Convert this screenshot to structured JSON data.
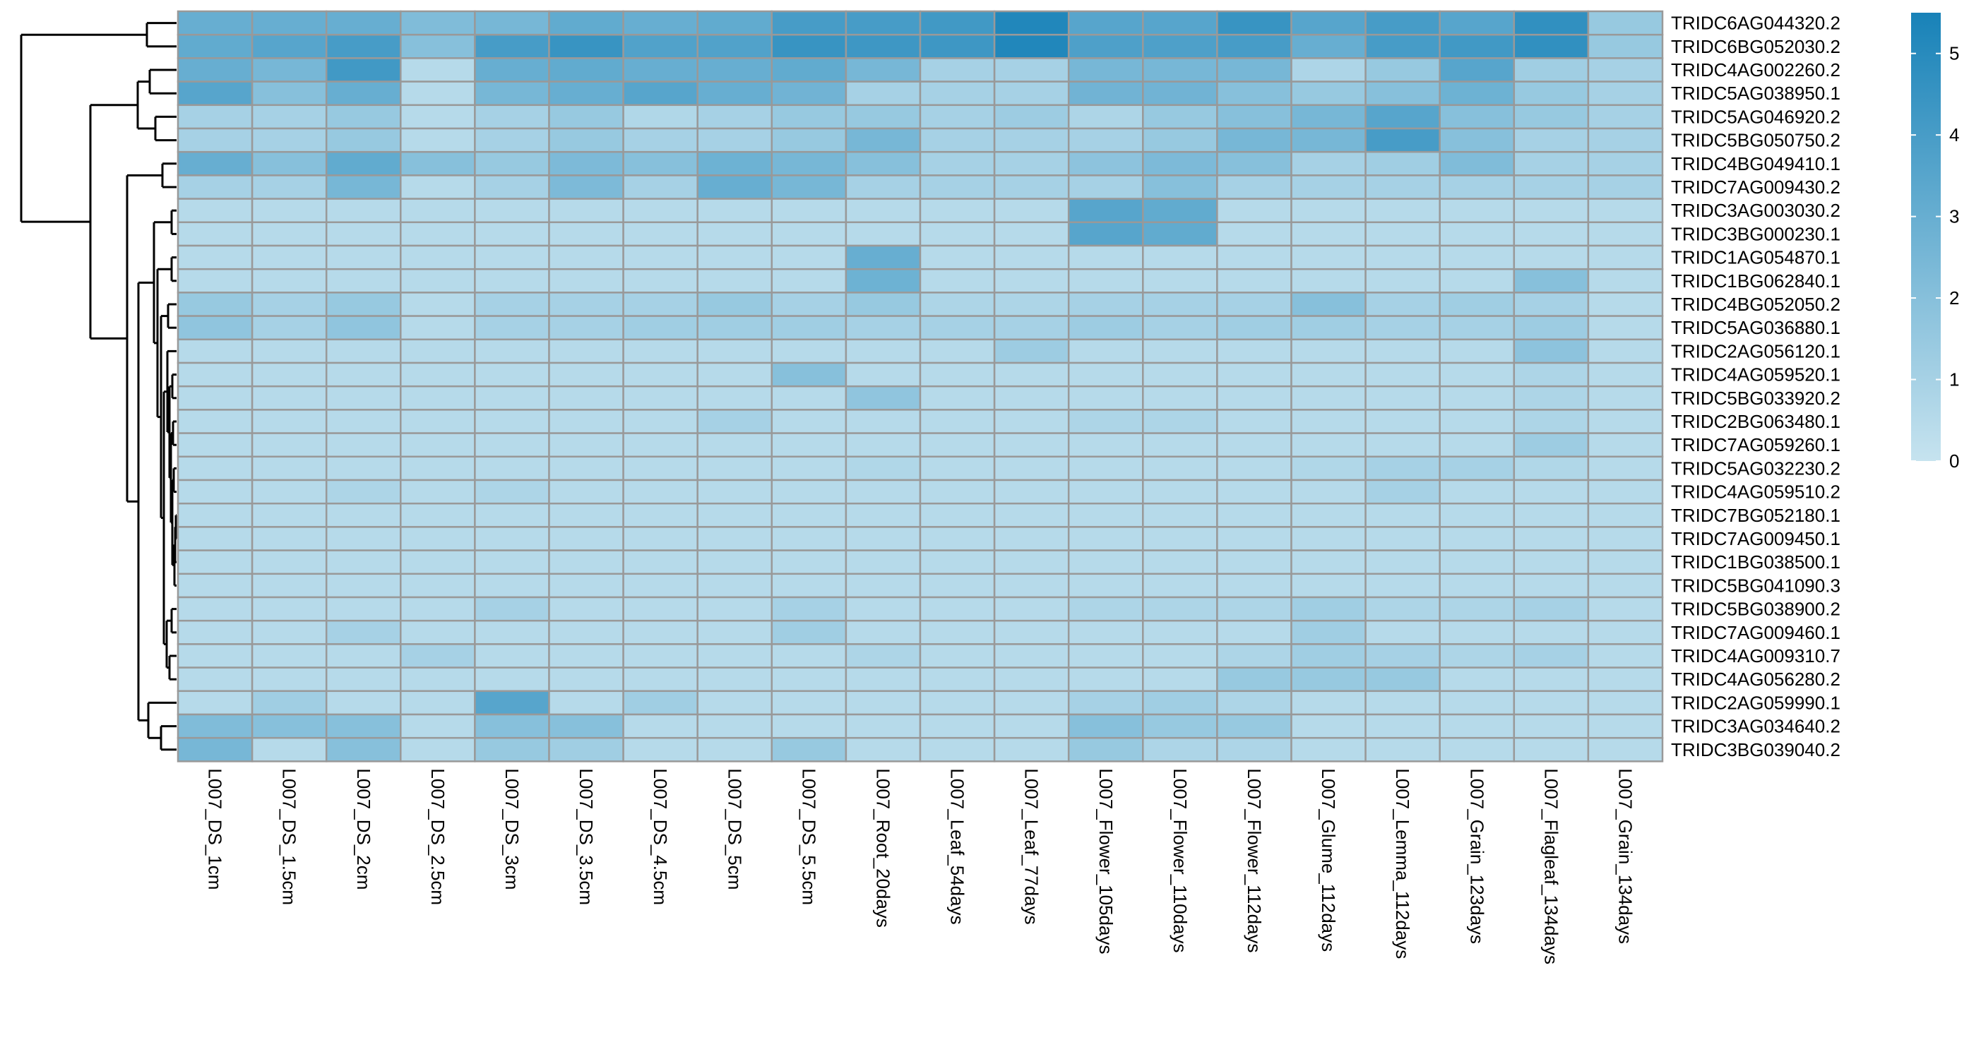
{
  "chart_data": {
    "type": "heatmap",
    "title": "",
    "xlabel": "",
    "ylabel": "",
    "columns": [
      "L007_DS_1cm",
      "L007_DS_1.5cm",
      "L007_DS_2cm",
      "L007_DS_2.5cm",
      "L007_DS_3cm",
      "L007_DS_3.5cm",
      "L007_DS_4.5cm",
      "L007_DS_5cm",
      "L007_DS_5.5cm",
      "L007_Root_20days",
      "L007_Leaf_54days",
      "L007_Leaf_77days",
      "L007_Flower_105days",
      "L007_Flower_110days",
      "L007_Flower_112days",
      "L007_Glume_112days",
      "L007_Lemma_112days",
      "L007_Grain_123days",
      "L007_Flagleaf_134days",
      "L007_Grain_134days"
    ],
    "rows": [
      "TRIDC6AG044320.2",
      "TRIDC6BG052030.2",
      "TRIDC4AG002260.2",
      "TRIDC5AG038950.1",
      "TRIDC5AG046920.2",
      "TRIDC5BG050750.2",
      "TRIDC4BG049410.1",
      "TRIDC7AG009430.2",
      "TRIDC3AG003030.2",
      "TRIDC3BG000230.1",
      "TRIDC1AG054870.1",
      "TRIDC1BG062840.1",
      "TRIDC4BG052050.2",
      "TRIDC5AG036880.1",
      "TRIDC2AG056120.1",
      "TRIDC4AG059520.1",
      "TRIDC5BG033920.2",
      "TRIDC2BG063480.1",
      "TRIDC7AG059260.1",
      "TRIDC5AG032230.2",
      "TRIDC4AG059510.2",
      "TRIDC7BG052180.1",
      "TRIDC7AG009450.1",
      "TRIDC1BG038500.1",
      "TRIDC5BG041090.3",
      "TRIDC5BG038900.2",
      "TRIDC7AG009460.1",
      "TRIDC4AG009310.7",
      "TRIDC4AG056280.2",
      "TRIDC2AG059990.1",
      "TRIDC3AG034640.2",
      "TRIDC3BG039040.2"
    ],
    "values": [
      [
        3.0,
        3.0,
        3.0,
        2.2,
        2.5,
        3.2,
        3.0,
        3.2,
        4.0,
        4.0,
        4.2,
        5.2,
        3.5,
        3.5,
        4.5,
        3.5,
        4.0,
        3.5,
        4.7,
        1.5
      ],
      [
        3.2,
        3.5,
        4.0,
        2.0,
        4.0,
        4.5,
        3.7,
        3.7,
        4.5,
        4.3,
        4.3,
        5.2,
        3.8,
        3.8,
        4.0,
        3.0,
        4.0,
        4.2,
        4.7,
        1.5
      ],
      [
        3.0,
        2.5,
        4.2,
        0.5,
        3.0,
        3.2,
        3.0,
        3.0,
        3.2,
        2.5,
        1.0,
        1.0,
        2.5,
        2.5,
        2.5,
        0.8,
        1.5,
        3.5,
        1.2,
        1.0
      ],
      [
        3.5,
        2.0,
        3.0,
        0.5,
        2.5,
        3.0,
        3.5,
        3.0,
        2.7,
        1.0,
        1.0,
        1.0,
        2.7,
        2.7,
        2.0,
        1.5,
        2.0,
        2.8,
        1.5,
        1.0
      ],
      [
        1.0,
        1.0,
        1.5,
        0.5,
        1.0,
        1.5,
        0.7,
        1.0,
        1.5,
        1.5,
        1.0,
        1.3,
        0.8,
        1.5,
        2.0,
        2.5,
        3.5,
        2.0,
        1.5,
        1.0
      ],
      [
        1.0,
        1.0,
        1.5,
        0.5,
        1.0,
        1.5,
        1.0,
        1.0,
        1.5,
        2.5,
        1.0,
        1.0,
        1.0,
        1.5,
        2.5,
        2.5,
        4.0,
        2.0,
        1.0,
        1.0
      ],
      [
        3.0,
        2.0,
        3.2,
        2.0,
        1.5,
        2.3,
        2.0,
        2.8,
        2.5,
        2.0,
        1.0,
        1.0,
        1.8,
        2.3,
        2.0,
        1.0,
        1.2,
        2.2,
        1.0,
        1.0
      ],
      [
        1.0,
        1.0,
        2.5,
        0.5,
        1.0,
        2.3,
        1.0,
        3.0,
        2.5,
        1.0,
        1.0,
        1.0,
        1.0,
        2.0,
        1.0,
        1.0,
        1.0,
        1.0,
        1.0,
        1.0
      ],
      [
        0.5,
        0.5,
        0.5,
        0.5,
        0.5,
        0.5,
        0.5,
        0.5,
        0.5,
        0.5,
        0.5,
        0.5,
        3.5,
        3.2,
        0.5,
        0.5,
        0.5,
        0.5,
        0.5,
        0.5
      ],
      [
        0.5,
        0.5,
        0.5,
        0.5,
        0.5,
        0.5,
        0.5,
        0.5,
        0.5,
        0.5,
        0.5,
        0.5,
        3.5,
        3.2,
        0.5,
        0.5,
        0.5,
        0.5,
        0.5,
        0.5
      ],
      [
        0.5,
        0.5,
        0.5,
        0.5,
        0.5,
        0.5,
        0.5,
        0.5,
        0.5,
        3.0,
        0.5,
        0.5,
        0.5,
        0.5,
        0.5,
        0.5,
        0.5,
        0.5,
        0.5,
        0.5
      ],
      [
        0.5,
        0.5,
        0.5,
        0.5,
        0.5,
        0.5,
        0.5,
        0.5,
        0.5,
        2.8,
        0.5,
        0.5,
        0.5,
        0.5,
        0.5,
        0.5,
        0.5,
        0.5,
        2.0,
        0.5
      ],
      [
        1.5,
        1.0,
        1.5,
        0.5,
        1.0,
        1.0,
        1.0,
        1.5,
        1.0,
        1.5,
        0.8,
        0.8,
        1.0,
        1.0,
        1.0,
        2.0,
        1.0,
        1.2,
        1.0,
        0.5
      ],
      [
        1.7,
        1.0,
        1.7,
        0.5,
        1.0,
        1.0,
        1.2,
        1.2,
        1.2,
        1.0,
        1.0,
        1.0,
        1.3,
        1.0,
        1.2,
        1.2,
        1.0,
        1.0,
        1.3,
        0.5
      ],
      [
        0.5,
        0.5,
        0.5,
        0.5,
        0.5,
        0.5,
        0.5,
        0.5,
        0.5,
        0.5,
        0.5,
        1.3,
        0.5,
        0.5,
        0.5,
        0.5,
        0.5,
        0.5,
        1.8,
        0.5
      ],
      [
        0.5,
        0.5,
        0.5,
        0.5,
        0.5,
        0.5,
        0.5,
        0.5,
        2.0,
        0.5,
        0.5,
        0.5,
        0.5,
        0.5,
        0.5,
        0.5,
        0.5,
        0.5,
        0.8,
        0.5
      ],
      [
        0.5,
        0.5,
        0.5,
        0.5,
        0.5,
        0.5,
        0.5,
        0.5,
        0.5,
        1.7,
        0.5,
        0.5,
        0.5,
        0.5,
        0.5,
        0.5,
        0.5,
        0.5,
        0.8,
        0.5
      ],
      [
        0.5,
        0.5,
        0.5,
        0.5,
        0.5,
        0.5,
        0.5,
        1.0,
        0.5,
        0.5,
        0.5,
        0.5,
        0.8,
        0.8,
        0.5,
        0.5,
        0.5,
        0.5,
        0.8,
        0.5
      ],
      [
        0.5,
        0.5,
        0.5,
        0.5,
        0.5,
        0.5,
        0.5,
        0.5,
        0.5,
        0.5,
        0.5,
        0.5,
        0.5,
        0.5,
        0.5,
        0.5,
        0.5,
        0.5,
        1.3,
        0.5
      ],
      [
        0.5,
        0.5,
        0.5,
        0.5,
        0.5,
        0.5,
        0.5,
        0.5,
        0.5,
        0.7,
        0.5,
        0.5,
        0.5,
        0.5,
        0.5,
        0.7,
        1.0,
        1.0,
        0.7,
        0.5
      ],
      [
        0.5,
        0.5,
        0.8,
        0.5,
        0.8,
        0.5,
        0.5,
        0.5,
        0.5,
        0.5,
        0.5,
        0.5,
        0.5,
        0.5,
        0.5,
        0.5,
        1.0,
        0.5,
        0.5,
        0.5
      ],
      [
        0.5,
        0.5,
        0.5,
        0.5,
        0.5,
        0.5,
        0.5,
        0.5,
        0.5,
        0.5,
        0.5,
        0.5,
        0.5,
        0.5,
        0.5,
        0.5,
        0.5,
        0.5,
        0.5,
        0.5
      ],
      [
        0.5,
        0.5,
        0.5,
        0.5,
        0.5,
        0.5,
        0.5,
        0.5,
        0.5,
        0.5,
        0.5,
        0.5,
        0.5,
        0.5,
        0.5,
        0.5,
        0.5,
        0.5,
        0.5,
        0.5
      ],
      [
        0.5,
        0.5,
        0.5,
        0.5,
        0.5,
        0.5,
        0.5,
        0.5,
        0.5,
        0.5,
        0.5,
        0.5,
        0.5,
        0.5,
        0.5,
        0.5,
        0.5,
        0.5,
        0.5,
        0.5
      ],
      [
        0.5,
        0.5,
        0.5,
        0.5,
        0.5,
        0.5,
        0.5,
        0.5,
        0.5,
        0.5,
        0.5,
        0.5,
        0.5,
        0.5,
        0.5,
        0.5,
        0.5,
        0.5,
        0.5,
        0.5
      ],
      [
        0.5,
        0.5,
        0.5,
        0.5,
        1.0,
        0.5,
        0.5,
        0.5,
        1.0,
        0.5,
        0.5,
        0.5,
        0.8,
        0.8,
        0.8,
        1.2,
        0.8,
        0.8,
        1.0,
        0.5
      ],
      [
        0.5,
        0.5,
        1.0,
        0.5,
        0.5,
        0.5,
        0.5,
        0.5,
        1.2,
        0.5,
        0.5,
        0.5,
        0.5,
        0.5,
        0.5,
        1.2,
        0.5,
        0.5,
        0.5,
        0.5
      ],
      [
        0.5,
        0.5,
        0.5,
        1.0,
        0.5,
        0.5,
        0.5,
        0.5,
        0.5,
        0.8,
        0.5,
        0.5,
        0.5,
        0.5,
        0.8,
        1.2,
        1.0,
        0.8,
        1.0,
        0.5
      ],
      [
        0.5,
        0.5,
        0.5,
        0.5,
        0.5,
        0.5,
        0.5,
        0.5,
        0.5,
        0.5,
        0.5,
        0.5,
        0.5,
        0.5,
        1.5,
        1.5,
        1.5,
        0.5,
        0.5,
        0.5
      ],
      [
        0.5,
        1.2,
        0.5,
        0.5,
        3.5,
        0.5,
        1.2,
        0.5,
        0.5,
        0.5,
        0.5,
        0.5,
        1.0,
        1.2,
        0.8,
        0.5,
        0.5,
        0.5,
        0.5,
        0.5
      ],
      [
        2.2,
        2.0,
        2.0,
        0.5,
        2.0,
        2.0,
        0.5,
        0.5,
        0.5,
        0.5,
        0.5,
        0.5,
        2.0,
        1.5,
        1.5,
        0.5,
        0.5,
        0.5,
        0.5,
        0.5
      ],
      [
        2.5,
        0.5,
        2.0,
        0.5,
        1.5,
        1.2,
        0.5,
        0.5,
        1.5,
        0.5,
        0.5,
        0.5,
        1.5,
        0.8,
        0.8,
        0.5,
        0.5,
        0.5,
        0.5,
        0.5
      ]
    ],
    "legend": {
      "range": [
        0,
        5.5
      ],
      "ticks": [
        "0",
        "1",
        "2",
        "3",
        "4",
        "5"
      ],
      "tick_values": [
        0,
        1,
        2,
        3,
        4,
        5
      ],
      "low_color": "#c6e3ef",
      "high_color": "#1882b8"
    },
    "cell_border_color": "#999999",
    "dendrogram": "rows clustered (left side)"
  }
}
